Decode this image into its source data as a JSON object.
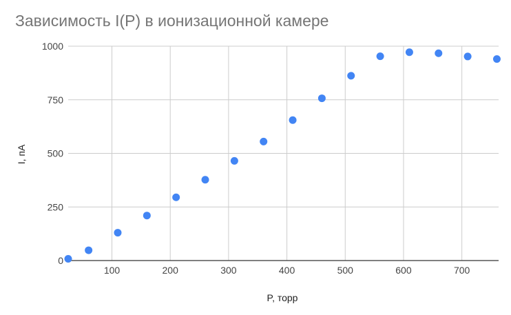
{
  "chart_data": {
    "type": "scatter",
    "title": "Зависимость I(P) в ионизационной камере",
    "xlabel": "P, торр",
    "ylabel": "I, пА",
    "xlim": [
      25,
      763
    ],
    "ylim": [
      0,
      1000
    ],
    "x_ticks": [
      100,
      200,
      300,
      400,
      500,
      600,
      700
    ],
    "y_ticks": [
      0,
      250,
      500,
      750,
      1000
    ],
    "grid": true,
    "marker_color": "#4285f4",
    "series": [
      {
        "x": [
          25,
          60,
          110,
          160,
          210,
          260,
          310,
          360,
          410,
          460,
          510,
          560,
          610,
          660,
          710,
          760
        ],
        "y": [
          8,
          48,
          130,
          210,
          295,
          377,
          465,
          555,
          655,
          757,
          862,
          953,
          972,
          967,
          952,
          940
        ]
      }
    ]
  }
}
